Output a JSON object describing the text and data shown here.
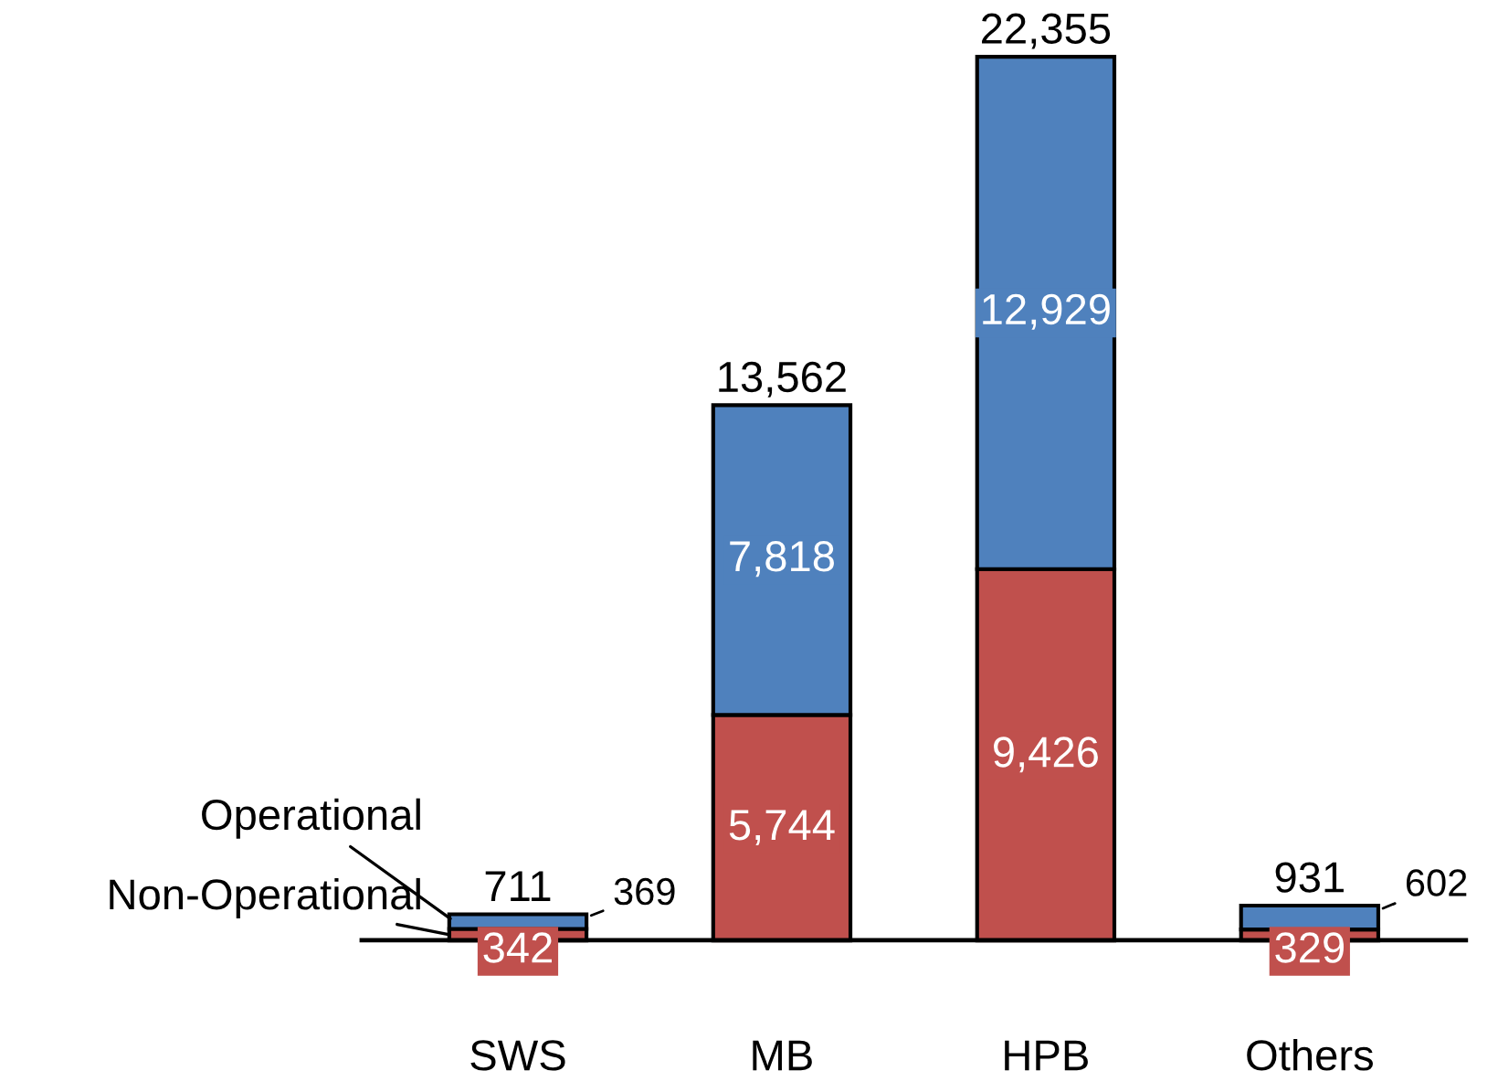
{
  "chart_data": {
    "type": "bar",
    "stacked": true,
    "categories": [
      "SWS",
      "MB",
      "HPB",
      "Others"
    ],
    "series": [
      {
        "name": "Non-Operational",
        "color": "#c0504d",
        "values": [
          342,
          5744,
          9426,
          329
        ],
        "value_labels": [
          "342",
          "5,744",
          "9,426",
          "329"
        ]
      },
      {
        "name": "Operational",
        "color": "#4f81bd",
        "values": [
          369,
          7818,
          12929,
          602
        ],
        "value_labels": [
          "369",
          "7,818",
          "12,929",
          "602"
        ]
      }
    ],
    "totals": [
      "711",
      "13,562",
      "22,355",
      "931"
    ],
    "legend": false
  }
}
